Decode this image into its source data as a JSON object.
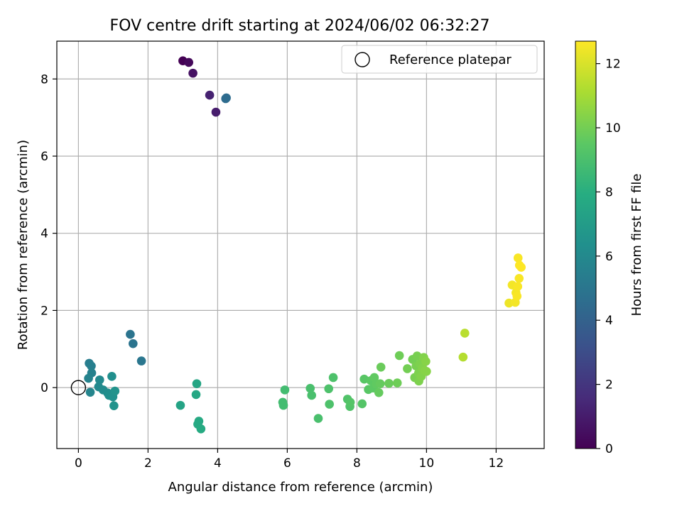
{
  "chart_data": {
    "type": "scatter",
    "title": "FOV centre drift starting at 2024/06/02 06:32:27",
    "xlabel": "Angular distance from reference (arcmin)",
    "ylabel": "Rotation from reference (arcmin)",
    "xlim": [
      -0.62,
      13.38
    ],
    "ylim": [
      -1.58,
      8.98
    ],
    "xticks": [
      0,
      2,
      4,
      6,
      8,
      10,
      12
    ],
    "yticks": [
      0,
      2,
      4,
      6,
      8
    ],
    "grid": true,
    "legend": {
      "placement": "top-right",
      "entries": [
        "Reference platepar"
      ]
    },
    "reference_point": {
      "x": 0,
      "y": 0,
      "label": "Reference platepar"
    },
    "colorbar": {
      "label": "Hours from first FF file",
      "min": 0,
      "max": 12.7,
      "ticks": [
        0,
        2,
        4,
        6,
        8,
        10,
        12
      ],
      "colormap": "viridis"
    },
    "points": [
      {
        "x": 3.0,
        "y": 8.47,
        "c": 0.0
      },
      {
        "x": 3.17,
        "y": 8.43,
        "c": 0.3
      },
      {
        "x": 3.29,
        "y": 8.15,
        "c": 0.6
      },
      {
        "x": 3.77,
        "y": 7.58,
        "c": 1.2
      },
      {
        "x": 3.95,
        "y": 7.14,
        "c": 1.0
      },
      {
        "x": 4.23,
        "y": 7.49,
        "c": 4.5
      },
      {
        "x": 4.25,
        "y": 7.51,
        "c": 4.5
      },
      {
        "x": 1.49,
        "y": 1.38,
        "c": 4.9
      },
      {
        "x": 1.57,
        "y": 1.14,
        "c": 4.9
      },
      {
        "x": 1.81,
        "y": 0.69,
        "c": 5.0
      },
      {
        "x": 0.31,
        "y": 0.63,
        "c": 5.4
      },
      {
        "x": 0.37,
        "y": 0.56,
        "c": 5.5
      },
      {
        "x": 0.38,
        "y": 0.38,
        "c": 5.6
      },
      {
        "x": 0.29,
        "y": 0.24,
        "c": 5.7
      },
      {
        "x": 0.34,
        "y": -0.12,
        "c": 5.8
      },
      {
        "x": 0.58,
        "y": 0.02,
        "c": 6.0
      },
      {
        "x": 0.61,
        "y": 0.2,
        "c": 6.0
      },
      {
        "x": 0.71,
        "y": -0.06,
        "c": 6.1
      },
      {
        "x": 0.84,
        "y": -0.14,
        "c": 6.2
      },
      {
        "x": 0.88,
        "y": -0.2,
        "c": 6.3
      },
      {
        "x": 0.96,
        "y": 0.29,
        "c": 6.3
      },
      {
        "x": 0.99,
        "y": -0.24,
        "c": 6.4
      },
      {
        "x": 1.02,
        "y": -0.47,
        "c": 6.5
      },
      {
        "x": 1.05,
        "y": -0.09,
        "c": 6.5
      },
      {
        "x": 2.93,
        "y": -0.46,
        "c": 7.4
      },
      {
        "x": 3.4,
        "y": 0.1,
        "c": 7.5
      },
      {
        "x": 3.38,
        "y": -0.18,
        "c": 7.6
      },
      {
        "x": 3.43,
        "y": -0.95,
        "c": 7.7
      },
      {
        "x": 3.46,
        "y": -0.87,
        "c": 7.7
      },
      {
        "x": 3.52,
        "y": -1.07,
        "c": 7.8
      },
      {
        "x": 5.87,
        "y": -0.38,
        "c": 8.8
      },
      {
        "x": 5.89,
        "y": -0.46,
        "c": 8.8
      },
      {
        "x": 5.93,
        "y": -0.06,
        "c": 8.8
      },
      {
        "x": 6.66,
        "y": -0.02,
        "c": 9.0
      },
      {
        "x": 6.7,
        "y": -0.2,
        "c": 9.0
      },
      {
        "x": 6.89,
        "y": -0.8,
        "c": 9.0
      },
      {
        "x": 7.19,
        "y": -0.03,
        "c": 9.1
      },
      {
        "x": 7.21,
        "y": -0.43,
        "c": 9.1
      },
      {
        "x": 7.32,
        "y": 0.26,
        "c": 9.1
      },
      {
        "x": 7.73,
        "y": -0.3,
        "c": 9.2
      },
      {
        "x": 7.8,
        "y": -0.49,
        "c": 9.2
      },
      {
        "x": 7.81,
        "y": -0.38,
        "c": 9.3
      },
      {
        "x": 8.15,
        "y": -0.42,
        "c": 9.3
      },
      {
        "x": 8.21,
        "y": 0.22,
        "c": 9.4
      },
      {
        "x": 8.33,
        "y": -0.05,
        "c": 9.4
      },
      {
        "x": 8.4,
        "y": 0.18,
        "c": 9.5
      },
      {
        "x": 8.47,
        "y": -0.01,
        "c": 9.5
      },
      {
        "x": 8.5,
        "y": 0.26,
        "c": 9.6
      },
      {
        "x": 8.56,
        "y": 0.09,
        "c": 9.6
      },
      {
        "x": 8.63,
        "y": -0.13,
        "c": 9.7
      },
      {
        "x": 8.67,
        "y": 0.1,
        "c": 9.7
      },
      {
        "x": 8.69,
        "y": 0.53,
        "c": 9.8
      },
      {
        "x": 8.92,
        "y": 0.11,
        "c": 9.8
      },
      {
        "x": 9.16,
        "y": 0.12,
        "c": 9.9
      },
      {
        "x": 9.22,
        "y": 0.83,
        "c": 9.9
      },
      {
        "x": 9.45,
        "y": 0.49,
        "c": 10.0
      },
      {
        "x": 9.6,
        "y": 0.73,
        "c": 10.0
      },
      {
        "x": 9.66,
        "y": 0.26,
        "c": 10.1
      },
      {
        "x": 9.7,
        "y": 0.56,
        "c": 10.1
      },
      {
        "x": 9.73,
        "y": 0.82,
        "c": 10.1
      },
      {
        "x": 9.77,
        "y": 0.37,
        "c": 10.2
      },
      {
        "x": 9.78,
        "y": 0.17,
        "c": 10.2
      },
      {
        "x": 9.81,
        "y": 0.61,
        "c": 10.2
      },
      {
        "x": 9.85,
        "y": 0.29,
        "c": 10.3
      },
      {
        "x": 9.88,
        "y": 0.5,
        "c": 10.3
      },
      {
        "x": 9.92,
        "y": 0.78,
        "c": 10.3
      },
      {
        "x": 9.95,
        "y": 0.44,
        "c": 10.4
      },
      {
        "x": 9.98,
        "y": 0.68,
        "c": 10.4
      },
      {
        "x": 10.0,
        "y": 0.42,
        "c": 10.4
      },
      {
        "x": 11.05,
        "y": 0.79,
        "c": 11.3
      },
      {
        "x": 11.1,
        "y": 1.41,
        "c": 11.4
      },
      {
        "x": 12.37,
        "y": 2.19,
        "c": 12.4
      },
      {
        "x": 12.46,
        "y": 2.66,
        "c": 12.5
      },
      {
        "x": 12.55,
        "y": 2.21,
        "c": 12.5
      },
      {
        "x": 12.57,
        "y": 2.46,
        "c": 12.5
      },
      {
        "x": 12.6,
        "y": 2.37,
        "c": 12.6
      },
      {
        "x": 12.62,
        "y": 2.62,
        "c": 12.6
      },
      {
        "x": 12.63,
        "y": 3.36,
        "c": 12.6
      },
      {
        "x": 12.66,
        "y": 2.83,
        "c": 12.6
      },
      {
        "x": 12.67,
        "y": 3.17,
        "c": 12.7
      },
      {
        "x": 12.72,
        "y": 3.12,
        "c": 12.7
      }
    ]
  }
}
